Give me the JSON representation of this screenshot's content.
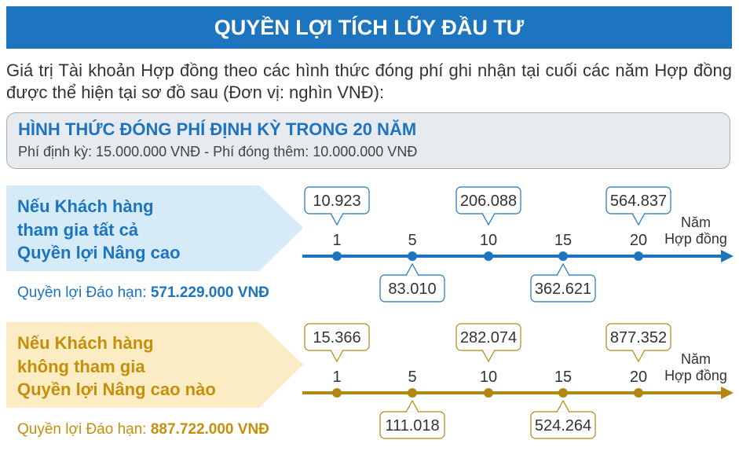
{
  "header": {
    "title": "QUYỀN LỢI TÍCH LŨY ĐẦU TƯ"
  },
  "intro": "Giá trị Tài khoản Hợp đồng theo các hình thức đóng phí ghi nhận tại cuối các năm Hợp đồng được thể hiện tại sơ đồ sau (Đơn vị: nghìn VNĐ):",
  "plan": {
    "title": "HÌNH THỨC ĐÓNG PHÍ ĐỊNH KỲ TRONG 20 NĂM",
    "subtitle": "Phí định kỳ: 15.000.000 VNĐ - Phí đóng thêm: 10.000.000 VNĐ"
  },
  "scenarios": [
    {
      "label": [
        "Nếu Khách hàng",
        "tham gia tất cả",
        "Quyền lợi Nâng cao"
      ],
      "maturity_label": "Quyền lợi Đáo hạn:",
      "maturity_value": "571.229.000 VNĐ",
      "axis_label": [
        "Năm",
        "Hợp đồng"
      ],
      "years": [
        "1",
        "5",
        "10",
        "15",
        "20"
      ],
      "values": [
        "10.923",
        "83.010",
        "206.088",
        "362.621",
        "564.837"
      ]
    },
    {
      "label": [
        "Nếu Khách hàng",
        "không tham gia",
        "Quyền lợi Nâng cao nào"
      ],
      "maturity_label": "Quyền lợi Đáo hạn:",
      "maturity_value": "887.722.000 VNĐ",
      "axis_label": [
        "Năm",
        "Hợp đồng"
      ],
      "years": [
        "1",
        "5",
        "10",
        "15",
        "20"
      ],
      "values": [
        "15.366",
        "111.018",
        "282.074",
        "524.264",
        "877.352"
      ]
    }
  ]
}
